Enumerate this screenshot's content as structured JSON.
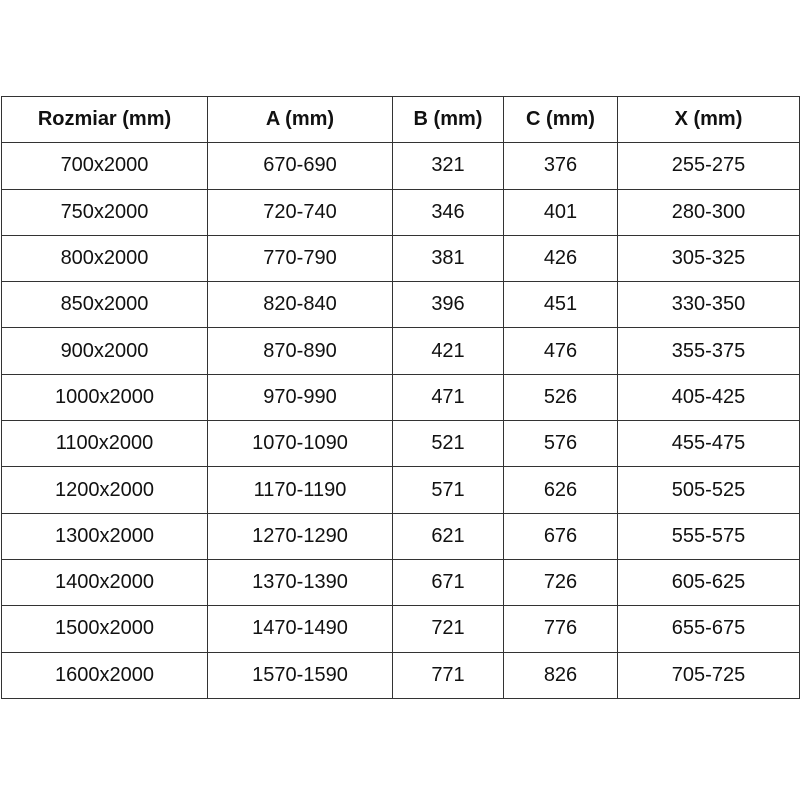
{
  "headers": [
    "Rozmiar (mm)",
    "A (mm)",
    "B (mm)",
    "C (mm)",
    "X (mm)"
  ],
  "rows": [
    [
      "700x2000",
      "670-690",
      "321",
      "376",
      "255-275"
    ],
    [
      "750x2000",
      "720-740",
      "346",
      "401",
      "280-300"
    ],
    [
      "800x2000",
      "770-790",
      "381",
      "426",
      "305-325"
    ],
    [
      "850x2000",
      "820-840",
      "396",
      "451",
      "330-350"
    ],
    [
      "900x2000",
      "870-890",
      "421",
      "476",
      "355-375"
    ],
    [
      "1000x2000",
      "970-990",
      "471",
      "526",
      "405-425"
    ],
    [
      "1100x2000",
      "1070-1090",
      "521",
      "576",
      "455-475"
    ],
    [
      "1200x2000",
      "1170-1190",
      "571",
      "626",
      "505-525"
    ],
    [
      "1300x2000",
      "1270-1290",
      "621",
      "676",
      "555-575"
    ],
    [
      "1400x2000",
      "1370-1390",
      "671",
      "726",
      "605-625"
    ],
    [
      "1500x2000",
      "1470-1490",
      "721",
      "776",
      "655-675"
    ],
    [
      "1600x2000",
      "1570-1590",
      "771",
      "826",
      "705-725"
    ]
  ]
}
